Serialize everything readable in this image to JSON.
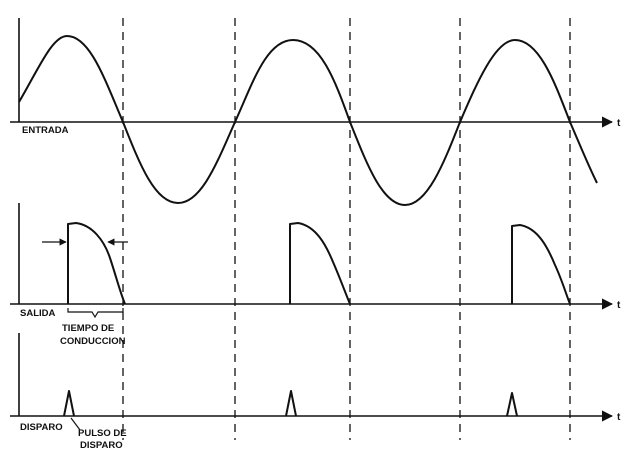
{
  "labels": {
    "input": "ENTRADA",
    "output": "SALIDA",
    "trigger": "DISPARO",
    "conduction_time_line1": "TIEMPO DE",
    "conduction_time_line2": "CONDUCCION",
    "trigger_pulse_line1": "PULSO DE",
    "trigger_pulse_line2": "DISPARO",
    "time_axis": "t"
  },
  "waveform": {
    "input_shape": "sine",
    "output_shape": "half-cycle segments from trigger point to zero crossing",
    "trigger_shape": "narrow triangular pulses",
    "cycles_shown": 3
  }
}
